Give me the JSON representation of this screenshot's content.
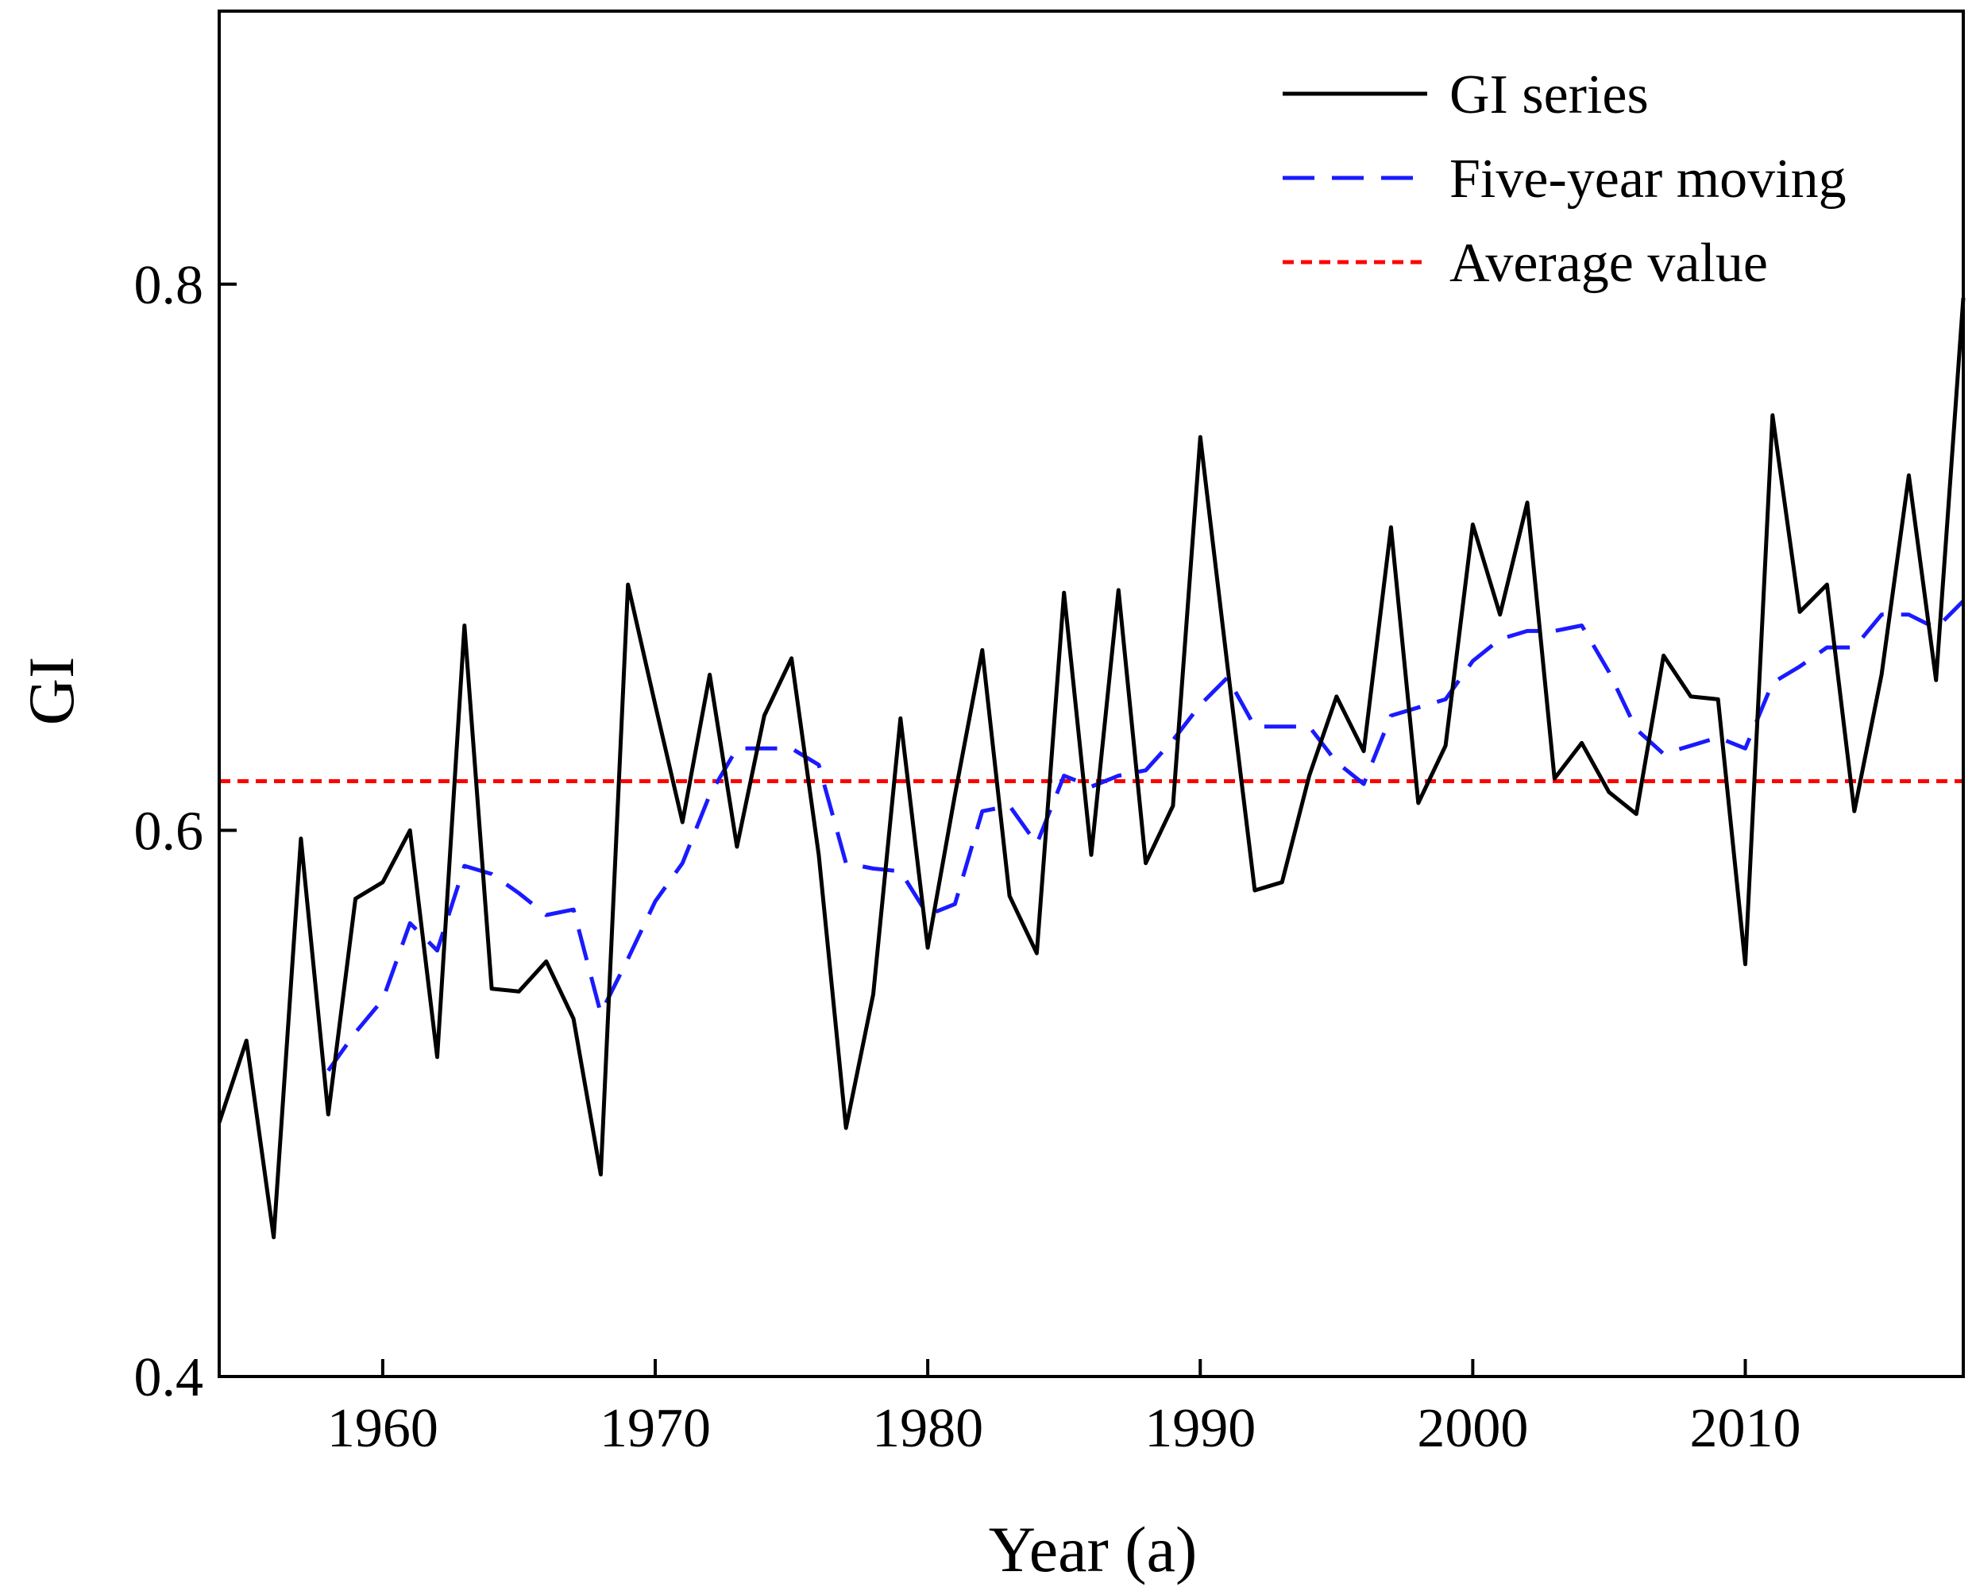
{
  "chart_data": {
    "type": "line",
    "title": "",
    "xlabel": "Year (a)",
    "ylabel": "GI",
    "xlim": [
      1954,
      2018
    ],
    "ylim": [
      0.4,
      0.9
    ],
    "xticks": [
      1960,
      1970,
      1980,
      1990,
      2000,
      2010
    ],
    "xtick_labels": [
      "1960",
      "1970",
      "1980",
      "1990",
      "2000",
      "2010"
    ],
    "yticks": [
      0.4,
      0.6,
      0.8
    ],
    "ytick_labels": [
      "0.4",
      "0.6",
      "0.8"
    ],
    "grid": false,
    "legend": {
      "position": "top-right",
      "entries": [
        "GI series",
        "Five-year moving",
        "Average value"
      ]
    },
    "x": [
      1954,
      1955,
      1956,
      1957,
      1958,
      1959,
      1960,
      1961,
      1962,
      1963,
      1964,
      1965,
      1966,
      1967,
      1968,
      1969,
      1970,
      1971,
      1972,
      1973,
      1974,
      1975,
      1976,
      1977,
      1978,
      1979,
      1980,
      1981,
      1982,
      1983,
      1984,
      1985,
      1986,
      1987,
      1988,
      1989,
      1990,
      1991,
      1992,
      1993,
      1994,
      1995,
      1996,
      1997,
      1998,
      1999,
      2000,
      2001,
      2002,
      2003,
      2004,
      2005,
      2006,
      2007,
      2008,
      2009,
      2010,
      2011,
      2012,
      2013,
      2014,
      2015,
      2016,
      2017,
      2018
    ],
    "series": [
      {
        "name": "GI series",
        "color": "#000000",
        "style": "solid",
        "values": [
          0.493,
          0.523,
          0.451,
          0.597,
          0.496,
          0.575,
          0.581,
          0.6,
          0.517,
          0.675,
          0.542,
          0.541,
          0.552,
          0.531,
          0.474,
          0.69,
          0.646,
          0.603,
          0.657,
          0.594,
          0.642,
          0.663,
          0.591,
          0.491,
          0.54,
          0.641,
          0.557,
          0.613,
          0.666,
          0.576,
          0.555,
          0.687,
          0.591,
          0.688,
          0.588,
          0.609,
          0.744,
          0.66,
          0.578,
          0.581,
          0.62,
          0.649,
          0.629,
          0.711,
          0.61,
          0.631,
          0.712,
          0.679,
          0.72,
          0.619,
          0.632,
          0.614,
          0.606,
          0.664,
          0.649,
          0.648,
          0.551,
          0.752,
          0.68,
          0.69,
          0.607,
          0.657,
          0.73,
          0.655,
          0.795
        ]
      },
      {
        "name": "Five-year moving",
        "color": "#1a1aff",
        "style": "dashed",
        "x": [
          1958,
          1959,
          1960,
          1961,
          1962,
          1963,
          1964,
          1965,
          1966,
          1967,
          1968,
          1969,
          1970,
          1971,
          1972,
          1973,
          1974,
          1975,
          1976,
          1977,
          1978,
          1979,
          1980,
          1981,
          1982,
          1983,
          1984,
          1985,
          1986,
          1987,
          1988,
          1989,
          1990,
          1991,
          1992,
          1993,
          1994,
          1995,
          1996,
          1997,
          1998,
          1999,
          2000,
          2001,
          2002,
          2003,
          2004,
          2005,
          2006,
          2007,
          2008,
          2009,
          2010,
          2011,
          2012,
          2013,
          2014,
          2015,
          2016,
          2017,
          2018
        ],
        "values": [
          0.512,
          0.526,
          0.538,
          0.566,
          0.556,
          0.587,
          0.584,
          0.577,
          0.569,
          0.571,
          0.533,
          0.553,
          0.574,
          0.588,
          0.613,
          0.63,
          0.63,
          0.63,
          0.624,
          0.588,
          0.586,
          0.585,
          0.569,
          0.573,
          0.607,
          0.609,
          0.595,
          0.62,
          0.616,
          0.62,
          0.622,
          0.633,
          0.646,
          0.656,
          0.638,
          0.638,
          0.638,
          0.625,
          0.617,
          0.642,
          0.645,
          0.648,
          0.662,
          0.67,
          0.673,
          0.673,
          0.675,
          0.658,
          0.637,
          0.628,
          0.631,
          0.634,
          0.63,
          0.654,
          0.66,
          0.667,
          0.667,
          0.679,
          0.679,
          0.674,
          0.684
        ]
      },
      {
        "name": "Average value",
        "color": "#ff0000",
        "style": "dotted",
        "x": [
          1954,
          2018
        ],
        "values": [
          0.618,
          0.618
        ]
      }
    ]
  }
}
